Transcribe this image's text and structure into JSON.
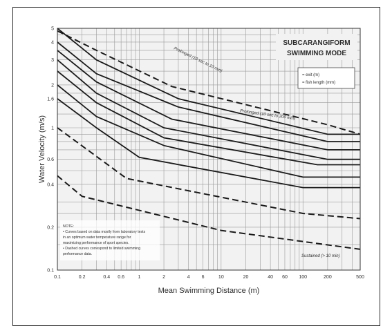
{
  "chart_data": {
    "type": "line",
    "title": "SUBCARANGIFORM",
    "subtitle": "SWIMMING MODE",
    "xlabel": "Mean Swimming Distance (m)",
    "ylabel": "Water Velocity (m/s)",
    "xscale": "log",
    "yscale": "log",
    "xlim": [
      0.1,
      500
    ],
    "ylim": [
      0.1,
      5
    ],
    "grid": true,
    "x_ticks": [
      "0.1",
      "0.2",
      "0.4",
      "0.6",
      "1",
      "2",
      "4",
      "6",
      "10",
      "20",
      "40",
      "60",
      "100",
      "200",
      "500"
    ],
    "y_ticks": [
      "0.1",
      "0.2",
      "0.4",
      "0.6",
      "1",
      "1.6",
      "2",
      "3",
      "4",
      "5"
    ],
    "legend": {
      "placement": "top-right",
      "entries": [
        "= exit (m)",
        "= fish length (mm)"
      ]
    },
    "annotations": [
      "Prolonged (10 sec to 200 min)",
      "Prolonged (10 sec to 10 min)",
      "Sustained (> 10 min)"
    ],
    "note_lines": [
      "NOTE:",
      "• Curves based on data mostly from laboratory tests",
      "  in an optimum water temperature range for",
      "  maximizing performance of sport species.",
      "• Dashed curves correspond to limited swimming",
      "  performance data."
    ],
    "series": [
      {
        "style": "solid",
        "points": [
          [
            0.1,
            5
          ],
          [
            0.3,
            3.0
          ],
          [
            3,
            1.6
          ],
          [
            200,
            0.9
          ],
          [
            500,
            0.9
          ]
        ]
      },
      {
        "style": "solid",
        "points": [
          [
            0.1,
            4
          ],
          [
            0.3,
            2.4
          ],
          [
            3,
            1.4
          ],
          [
            200,
            0.8
          ],
          [
            500,
            0.8
          ]
        ]
      },
      {
        "style": "solid",
        "points": [
          [
            0.1,
            3.5
          ],
          [
            0.3,
            2.1
          ],
          [
            2.5,
            1.15
          ],
          [
            200,
            0.7
          ],
          [
            500,
            0.7
          ]
        ]
      },
      {
        "style": "solid",
        "points": [
          [
            0.1,
            3
          ],
          [
            0.3,
            1.75
          ],
          [
            2,
            1.0
          ],
          [
            200,
            0.6
          ],
          [
            500,
            0.6
          ]
        ]
      },
      {
        "style": "solid",
        "points": [
          [
            0.1,
            2.5
          ],
          [
            0.3,
            1.5
          ],
          [
            2,
            0.85
          ],
          [
            150,
            0.55
          ],
          [
            500,
            0.55
          ]
        ]
      },
      {
        "style": "solid",
        "points": [
          [
            0.1,
            2.0
          ],
          [
            0.3,
            1.2
          ],
          [
            2,
            0.75
          ],
          [
            100,
            0.45
          ],
          [
            500,
            0.45
          ]
        ]
      },
      {
        "style": "solid",
        "points": [
          [
            0.1,
            1.6
          ],
          [
            0.3,
            1.0
          ],
          [
            1,
            0.62
          ],
          [
            100,
            0.38
          ],
          [
            500,
            0.38
          ]
        ]
      },
      {
        "style": "dashed",
        "points": [
          [
            0.1,
            4.8
          ],
          [
            0.3,
            3.5
          ],
          [
            2.5,
            1.95
          ],
          [
            200,
            1.05
          ],
          [
            500,
            0.9
          ]
        ]
      },
      {
        "style": "dashed",
        "points": [
          [
            0.1,
            1.0
          ],
          [
            0.7,
            0.44
          ],
          [
            100,
            0.25
          ],
          [
            500,
            0.23
          ]
        ]
      },
      {
        "style": "dashed",
        "points": [
          [
            0.1,
            0.46
          ],
          [
            0.2,
            0.33
          ],
          [
            10,
            0.19
          ],
          [
            500,
            0.14
          ]
        ]
      }
    ]
  }
}
